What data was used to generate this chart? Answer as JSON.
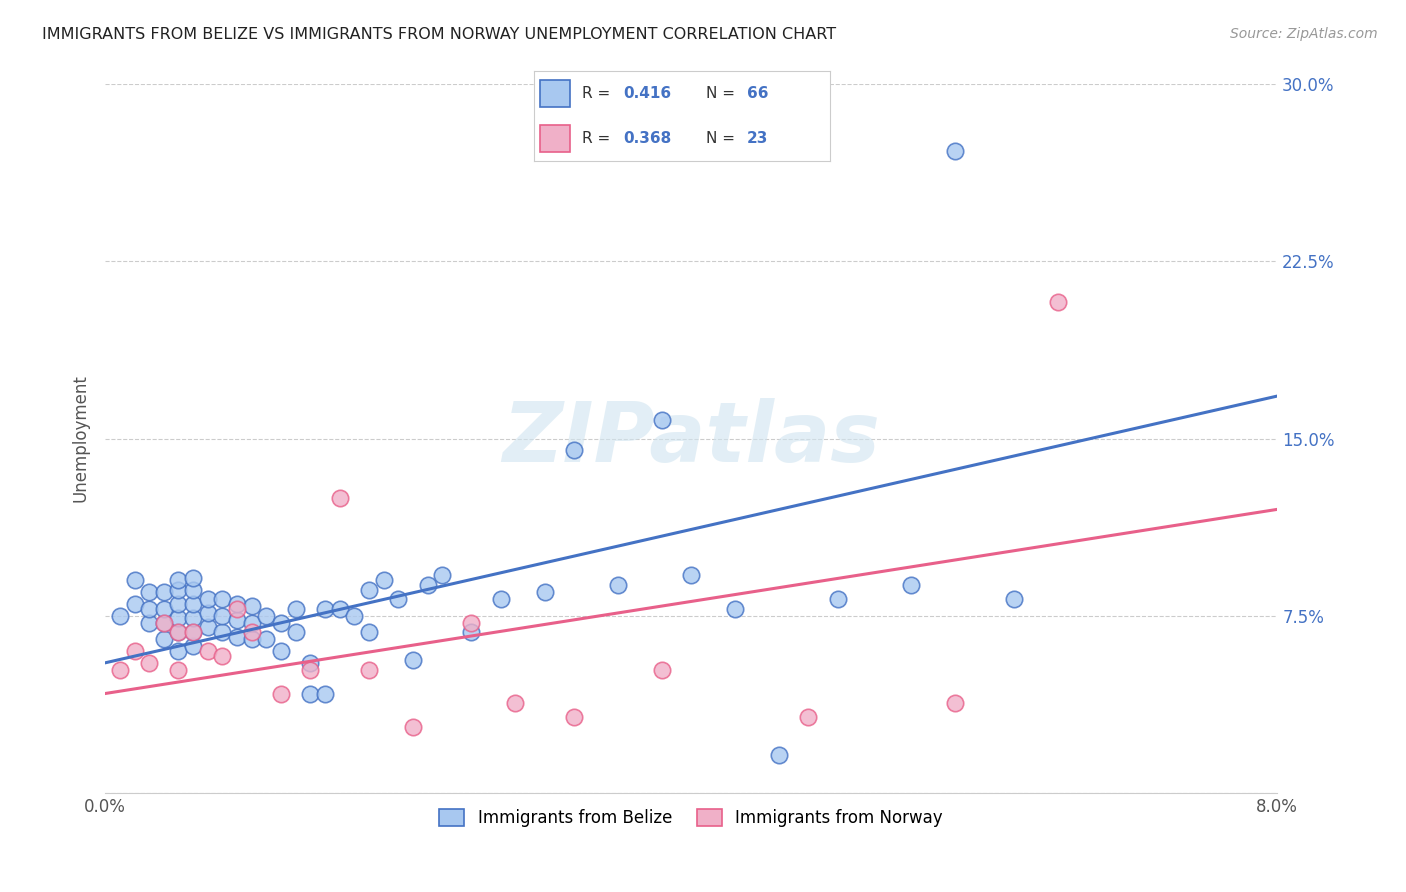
{
  "title": "IMMIGRANTS FROM BELIZE VS IMMIGRANTS FROM NORWAY UNEMPLOYMENT CORRELATION CHART",
  "source": "Source: ZipAtlas.com",
  "xlabel_belize": "Immigrants from Belize",
  "xlabel_norway": "Immigrants from Norway",
  "ylabel": "Unemployment",
  "x_min": 0.0,
  "x_max": 0.08,
  "y_min": 0.0,
  "y_max": 0.3,
  "color_belize": "#a8c8f0",
  "color_norway": "#f0b0c8",
  "color_belize_line": "#4472c4",
  "color_norway_line": "#e8608a",
  "color_tick": "#4472c4",
  "watermark_color": "#d0e4f0",
  "belize_x": [
    0.001,
    0.002,
    0.002,
    0.003,
    0.003,
    0.003,
    0.004,
    0.004,
    0.004,
    0.004,
    0.005,
    0.005,
    0.005,
    0.005,
    0.005,
    0.005,
    0.006,
    0.006,
    0.006,
    0.006,
    0.006,
    0.006,
    0.007,
    0.007,
    0.007,
    0.008,
    0.008,
    0.008,
    0.009,
    0.009,
    0.009,
    0.01,
    0.01,
    0.01,
    0.011,
    0.011,
    0.012,
    0.012,
    0.013,
    0.013,
    0.014,
    0.014,
    0.015,
    0.015,
    0.016,
    0.017,
    0.018,
    0.018,
    0.019,
    0.02,
    0.021,
    0.022,
    0.023,
    0.025,
    0.027,
    0.03,
    0.032,
    0.035,
    0.038,
    0.04,
    0.043,
    0.046,
    0.05,
    0.055,
    0.058,
    0.062
  ],
  "belize_y": [
    0.075,
    0.08,
    0.09,
    0.072,
    0.078,
    0.085,
    0.065,
    0.072,
    0.078,
    0.085,
    0.06,
    0.068,
    0.074,
    0.08,
    0.086,
    0.09,
    0.062,
    0.068,
    0.074,
    0.08,
    0.086,
    0.091,
    0.07,
    0.076,
    0.082,
    0.068,
    0.075,
    0.082,
    0.066,
    0.073,
    0.08,
    0.065,
    0.072,
    0.079,
    0.065,
    0.075,
    0.06,
    0.072,
    0.068,
    0.078,
    0.042,
    0.055,
    0.042,
    0.078,
    0.078,
    0.075,
    0.068,
    0.086,
    0.09,
    0.082,
    0.056,
    0.088,
    0.092,
    0.068,
    0.082,
    0.085,
    0.145,
    0.088,
    0.158,
    0.092,
    0.078,
    0.016,
    0.082,
    0.088,
    0.272,
    0.082
  ],
  "norway_x": [
    0.001,
    0.002,
    0.003,
    0.004,
    0.005,
    0.005,
    0.006,
    0.007,
    0.008,
    0.009,
    0.01,
    0.012,
    0.014,
    0.016,
    0.018,
    0.021,
    0.025,
    0.028,
    0.032,
    0.038,
    0.048,
    0.058,
    0.065
  ],
  "norway_y": [
    0.052,
    0.06,
    0.055,
    0.072,
    0.052,
    0.068,
    0.068,
    0.06,
    0.058,
    0.078,
    0.068,
    0.042,
    0.052,
    0.125,
    0.052,
    0.028,
    0.072,
    0.038,
    0.032,
    0.052,
    0.032,
    0.038,
    0.208
  ],
  "line_belize_x0": 0.0,
  "line_belize_y0": 0.055,
  "line_belize_x1": 0.08,
  "line_belize_y1": 0.168,
  "line_norway_x0": 0.0,
  "line_norway_y0": 0.042,
  "line_norway_x1": 0.08,
  "line_norway_y1": 0.12
}
